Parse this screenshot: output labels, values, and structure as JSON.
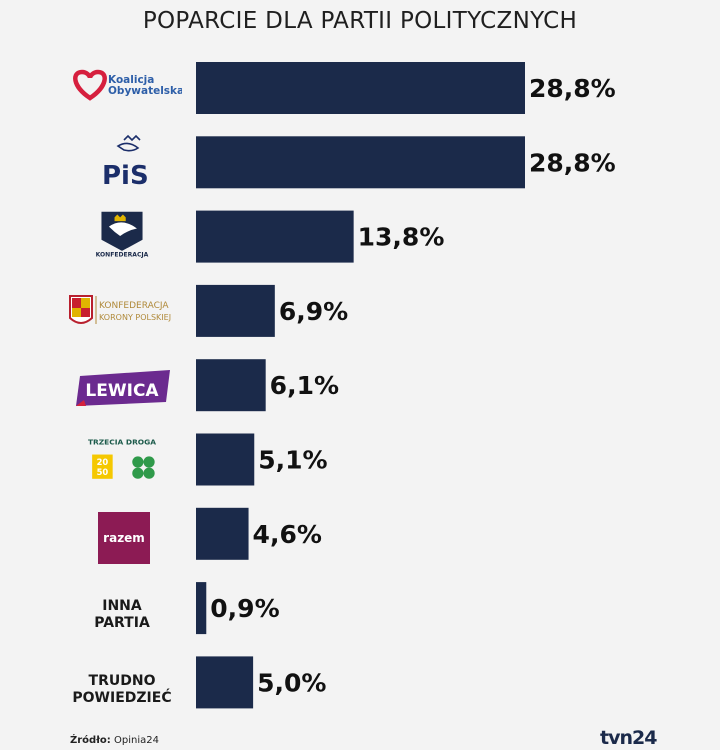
{
  "source": {
    "label": "Źródło:",
    "value": "Opinia24"
  },
  "brand": "tvn24",
  "colors": {
    "bar": "#1b2a4a",
    "ko_red": "#d61f3e",
    "ko_blue": "#2d5ea8",
    "pis_navy": "#1b2e6a",
    "lewica_purple": "#6b2a8f",
    "lewica_red": "#d4213d",
    "razem_plum": "#8c1b54",
    "trzecia_green": "#2f9a4a",
    "trzecia_yellow": "#f5c800"
  },
  "logos": {
    "ko": {
      "line1": "Koalicja",
      "line2": "Obywatelska",
      "icon": "heart-icon"
    },
    "pis": {
      "text": "PiS",
      "icon": "eagle-crown-icon"
    },
    "konfederacja": {
      "text": "KONFEDERACJA",
      "icon": "flag-eagle-icon"
    },
    "kkp": {
      "line1": "KONFEDERACJA",
      "line2": "KORONY POLSKIEJ",
      "icon": "coat-of-arms-icon"
    },
    "lewica": {
      "text": "LEWICA"
    },
    "trzecia": {
      "text": "TRZECIA DROGA",
      "icon": "clover-icon"
    },
    "razem": {
      "text": "razem"
    }
  },
  "chart_data": {
    "type": "bar",
    "orientation": "horizontal",
    "title": "POPARCIE DLA PARTII POLITYCZNYCH",
    "categories": [
      "Koalicja Obywatelska",
      "PiS",
      "KONFEDERACJA",
      "KONFEDERACJA KORONY POLSKIEJ",
      "LEWICA",
      "TRZECIA DROGA",
      "razem",
      "INNA PARTIA",
      "TRUDNO POWIEDZIEĆ"
    ],
    "values": [
      28.8,
      28.8,
      13.8,
      6.9,
      6.1,
      5.1,
      4.6,
      0.9,
      5.0
    ],
    "value_labels": [
      "28,8%",
      "28,8%",
      "13,8%",
      "6,9%",
      "6,1%",
      "5,1%",
      "4,6%",
      "0,9%",
      "5,0%"
    ],
    "text_categories": {
      "inna": {
        "line1": "INNA",
        "line2": "PARTIA"
      },
      "trudno": {
        "line1": "TRUDNO",
        "line2": "POWIEDZIEĆ"
      }
    },
    "grid": false,
    "legend": "none"
  }
}
